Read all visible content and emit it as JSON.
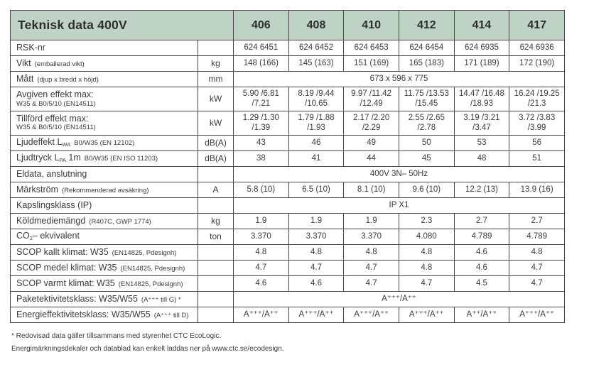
{
  "title": "Teknisk data 400V",
  "models": [
    "406",
    "408",
    "410",
    "412",
    "414",
    "417"
  ],
  "rows": [
    {
      "label": "RSK-nr",
      "unit": "",
      "values": [
        "624 6451",
        "624 6452",
        "624 6453",
        "624 6454",
        "624 6935",
        "624 6936"
      ]
    },
    {
      "label": "Vikt",
      "note": "(emballerad vikt)",
      "unit": "kg",
      "values": [
        "148 (166)",
        "145 (163)",
        "151 (169)",
        "165 (183)",
        "171 (189)",
        "172 (190)"
      ]
    },
    {
      "label": "Mått",
      "note": "(djup x bredd x höjd)",
      "unit": "mm",
      "span": "673 x 596 x 775"
    },
    {
      "label": "Avgiven effekt max:",
      "note2": "W35 & B0/5/10 (EN14511)",
      "unit": "kW",
      "values": [
        "5.90 /6.81 /7.21",
        "8.19 /9.44 /10.65",
        "9.97 /11.42 /12.49",
        "11.75 /13.53 /15.45",
        "14.47 /16.48 /18.93",
        "16.24 /19.25 /21.3"
      ]
    },
    {
      "label": "Tillförd effekt max:",
      "note2": "W35 & B0/5/10 (EN14511)",
      "unit": "kW",
      "values": [
        "1.29 /1.30 /1.39",
        "1.79 /1.88 /1.93",
        "2.17 /2.20 /2.29",
        "2.55 /2.65 /2.78",
        "3.19 /3.21 /3.47",
        "3.72 /3.83 /3.99"
      ]
    },
    {
      "label": "Ljudeffekt L",
      "label_sub": "WA",
      "note": "B0/W35 (EN 12102)",
      "unit": "dB(A)",
      "values": [
        "43",
        "46",
        "49",
        "50",
        "53",
        "56"
      ]
    },
    {
      "label": "Ljudtryck L",
      "label_sub": "PA",
      "label_after": " 1m",
      "note": "B0/W35 (EN ISO 11203)",
      "unit": "dB(A)",
      "values": [
        "38",
        "41",
        "44",
        "45",
        "48",
        "51"
      ]
    },
    {
      "label": "Eldata, anslutning",
      "unit": "",
      "span": "400V 3N– 50Hz"
    },
    {
      "label": "Märkström",
      "note": "(Rekommenderad avsäkring)",
      "unit": "A",
      "values": [
        "5.8 (10)",
        "6.5 (10)",
        "8.1 (10)",
        "9.6 (10)",
        "12.2 (13)",
        "13.9 (16)"
      ]
    },
    {
      "label": "Kapslingsklass (IP)",
      "unit": "",
      "span": "IP X1"
    },
    {
      "label": "Köldmediemängd",
      "note": "(R407C, GWP 1774)",
      "unit": "kg",
      "values": [
        "1.9",
        "1.9",
        "1.9",
        "2.3",
        "2.7",
        "2.7"
      ]
    },
    {
      "label": "CO",
      "label_sub": "2",
      "label_after": "– ekvivalent",
      "unit": "ton",
      "values": [
        "3.370",
        "3.370",
        "3.370",
        "4.080",
        "4.789",
        "4.789"
      ]
    },
    {
      "label": "SCOP kallt klimat: W35",
      "note": "(EN14825, Pdesignh)",
      "unit": "",
      "values": [
        "4.8",
        "4.8",
        "4.8",
        "4.8",
        "4.6",
        "4.8"
      ]
    },
    {
      "label": "SCOP medel klimat: W35",
      "note": "(EN14825, Pdesignh)",
      "unit": "",
      "values": [
        "4.7",
        "4.7",
        "4.7",
        "4.8",
        "4.6",
        "4.7"
      ]
    },
    {
      "label": "SCOP varmt klimat: W35",
      "note": "(EN14825, Pdesignh)",
      "unit": "",
      "values": [
        "4.6",
        "4.6",
        "4.7",
        "4.7",
        "4.5",
        "4.7"
      ]
    },
    {
      "label": "Paketektivitetsklass: W35/W55",
      "note": "(A⁺⁺⁺ till G) *",
      "unit": "",
      "span": "A⁺⁺⁺/A⁺⁺"
    },
    {
      "label": "Energieffektivitetsklass: W35/W55",
      "note": "(A⁺⁺⁺ till D)",
      "unit": "",
      "values": [
        "A⁺⁺⁺/A⁺⁺",
        "A⁺⁺⁺/A⁺⁺",
        "A⁺⁺⁺/A⁺⁺",
        "A⁺⁺⁺/A⁺⁺",
        "A⁺⁺/A⁺⁺",
        "A⁺⁺⁺/A⁺⁺"
      ]
    }
  ],
  "footnotes": [
    "* Redovisad data gäller tillsammans med styrenhet CTC EcoLogic.",
    "Energimärkningsdekaler och datablad kan enkelt laddas ner på www.ctc.se/ecodesign."
  ],
  "colors": {
    "header_bg": "#bed3c5",
    "border": "#474747",
    "text": "#3b3b3b"
  }
}
